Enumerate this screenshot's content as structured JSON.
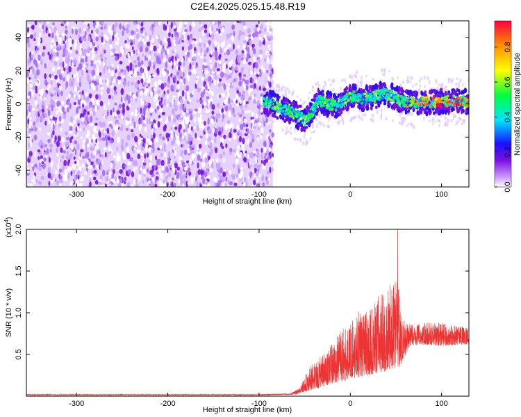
{
  "title": "C2E4.2025.025.15.48.R19",
  "chart_data": [
    {
      "type": "heatmap",
      "xlabel": "Height of straight line (km)",
      "ylabel": "Frequency (Hz)",
      "xlim": [
        -355,
        130
      ],
      "ylim": [
        -50,
        50
      ],
      "xticks": [
        -300,
        -200,
        -100,
        0,
        100
      ],
      "yticks": [
        -40,
        -20,
        0,
        20,
        40
      ],
      "noise_region_x": [
        -355,
        -85
      ],
      "signal_region_x": [
        -95,
        130
      ],
      "signal_center_track": [
        {
          "x": -95,
          "y": 1
        },
        {
          "x": -85,
          "y": 0
        },
        {
          "x": -75,
          "y": -3
        },
        {
          "x": -65,
          "y": -5
        },
        {
          "x": -55,
          "y": -8
        },
        {
          "x": -48,
          "y": -10
        },
        {
          "x": -42,
          "y": -5
        },
        {
          "x": -35,
          "y": 2
        },
        {
          "x": -25,
          "y": 0
        },
        {
          "x": -15,
          "y": -1
        },
        {
          "x": -5,
          "y": 3
        },
        {
          "x": 5,
          "y": 5
        },
        {
          "x": 15,
          "y": 3
        },
        {
          "x": 25,
          "y": 4
        },
        {
          "x": 35,
          "y": 6
        },
        {
          "x": 45,
          "y": 5
        },
        {
          "x": 55,
          "y": 2
        },
        {
          "x": 65,
          "y": 1
        },
        {
          "x": 80,
          "y": 1
        },
        {
          "x": 95,
          "y": 1
        },
        {
          "x": 110,
          "y": 2
        },
        {
          "x": 130,
          "y": 1
        }
      ],
      "colorbar": {
        "label": "Normalized spectral amplitude",
        "ticks": [
          0.0,
          0.2,
          0.4,
          0.6,
          0.8
        ],
        "ticklabels": [
          "0.0",
          "0.2",
          "0.4",
          "0.6",
          "0.8"
        ],
        "range": [
          0,
          0.95
        ],
        "colormap": [
          "#ffffff",
          "#cc99ff",
          "#7b10e0",
          "#1a10ff",
          "#00e5ff",
          "#00ff40",
          "#ffff00",
          "#ff9000",
          "#ff0040"
        ]
      }
    },
    {
      "type": "line",
      "xlabel": "Height of straight line (km)",
      "ylabel": "SNR (10 * v/v)",
      "multiplier": "(x10",
      "multiplier_exp": "4",
      "multiplier_close": ")",
      "xlim": [
        -355,
        130
      ],
      "ylim": [
        0,
        2.0
      ],
      "xticks": [
        -300,
        -200,
        -100,
        0,
        100
      ],
      "yticks": [
        0.5,
        1.0,
        1.5,
        2.0
      ],
      "yticklabels": [
        "0.5",
        "1.0",
        "1.5",
        "2.0"
      ],
      "color": "#ee3333",
      "envelope": [
        {
          "x": -355,
          "y": 0.02
        },
        {
          "x": -100,
          "y": 0.02
        },
        {
          "x": -65,
          "y": 0.03
        },
        {
          "x": -55,
          "y": 0.12
        },
        {
          "x": -45,
          "y": 0.35
        },
        {
          "x": -35,
          "y": 0.45
        },
        {
          "x": -25,
          "y": 0.55
        },
        {
          "x": -10,
          "y": 0.8
        },
        {
          "x": 0,
          "y": 0.9
        },
        {
          "x": 10,
          "y": 1.05
        },
        {
          "x": 20,
          "y": 1.0
        },
        {
          "x": 30,
          "y": 1.2
        },
        {
          "x": 40,
          "y": 1.25
        },
        {
          "x": 50,
          "y": 1.5
        },
        {
          "x": 55,
          "y": 1.2
        },
        {
          "x": 60,
          "y": 0.9
        },
        {
          "x": 70,
          "y": 0.85
        },
        {
          "x": 80,
          "y": 0.88
        },
        {
          "x": 90,
          "y": 0.9
        },
        {
          "x": 100,
          "y": 0.88
        },
        {
          "x": 110,
          "y": 0.86
        },
        {
          "x": 120,
          "y": 0.84
        },
        {
          "x": 130,
          "y": 0.82
        }
      ],
      "baseline": [
        {
          "x": -355,
          "y": 0.01
        },
        {
          "x": -100,
          "y": 0.01
        },
        {
          "x": -60,
          "y": 0.02
        },
        {
          "x": -40,
          "y": 0.08
        },
        {
          "x": -20,
          "y": 0.15
        },
        {
          "x": 0,
          "y": 0.2
        },
        {
          "x": 20,
          "y": 0.25
        },
        {
          "x": 40,
          "y": 0.3
        },
        {
          "x": 55,
          "y": 0.35
        },
        {
          "x": 65,
          "y": 0.6
        },
        {
          "x": 80,
          "y": 0.62
        },
        {
          "x": 100,
          "y": 0.6
        },
        {
          "x": 130,
          "y": 0.62
        }
      ],
      "peak": {
        "x": 52,
        "y": 2.0
      }
    }
  ]
}
